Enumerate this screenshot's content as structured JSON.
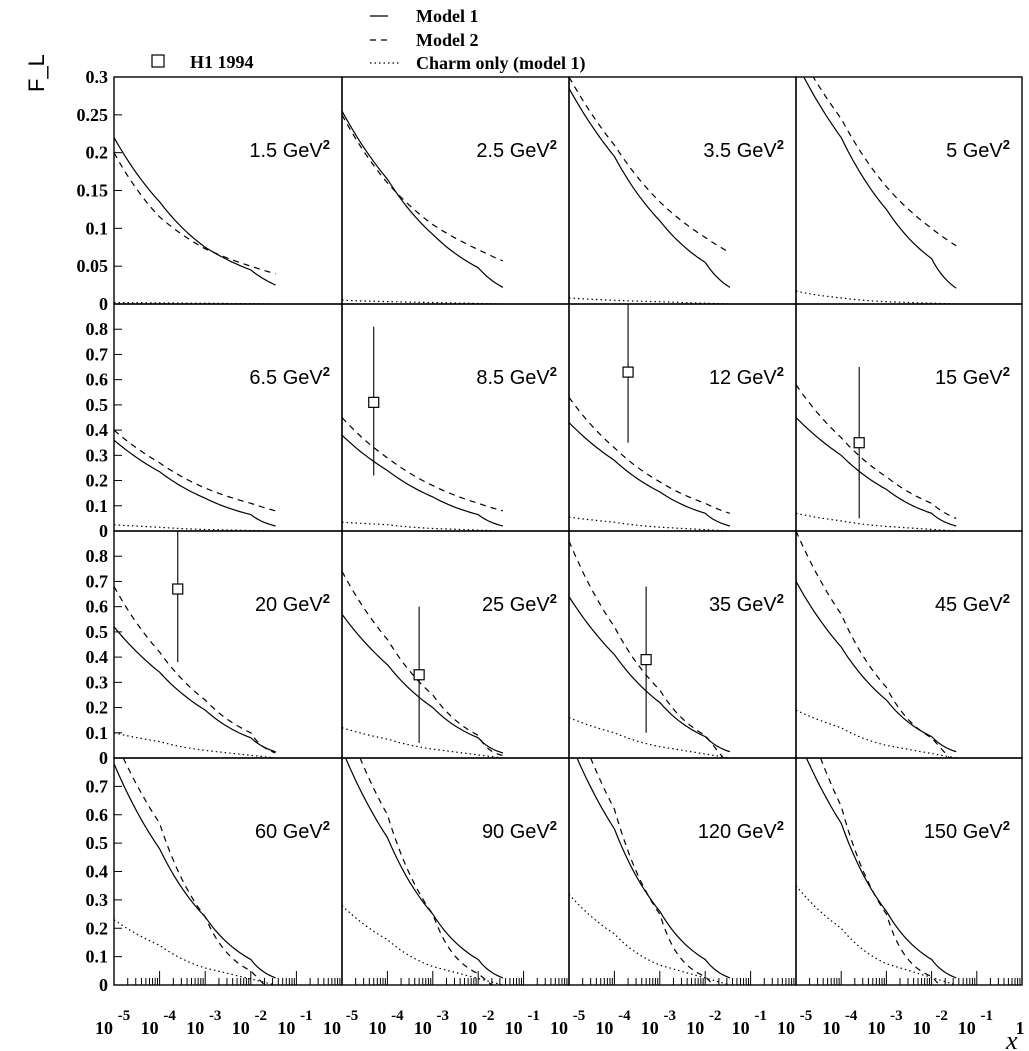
{
  "chart_data": {
    "type": "line",
    "x_scale": "log",
    "xlabel": "x",
    "ylabel": "F_L",
    "xlim": [
      1e-05,
      1
    ],
    "x_tick_labels": [
      "10",
      "-5",
      "10",
      "-4",
      "10",
      "-3",
      "10",
      "-2",
      "10",
      "-1",
      "1"
    ],
    "legend": {
      "lines": [
        {
          "label": "Model 1",
          "style": "solid"
        },
        {
          "label": "Model 2",
          "style": "dashed"
        },
        {
          "label": "Charm only (model 1)",
          "style": "dotted"
        }
      ],
      "marker": {
        "label": "H1 1994",
        "symbol": "open-square"
      }
    },
    "rows": [
      {
        "ylim": [
          0,
          0.3
        ],
        "y_tick_labels": [
          "0",
          "0.05",
          "0.1",
          "0.15",
          "0.2",
          "0.25",
          "0.3"
        ]
      },
      {
        "ylim": [
          0,
          0.9
        ],
        "y_tick_labels": [
          "0",
          "0.1",
          "0.2",
          "0.3",
          "0.4",
          "0.5",
          "0.6",
          "0.7",
          "0.8"
        ]
      },
      {
        "ylim": [
          0,
          0.9
        ],
        "y_tick_labels": [
          "0",
          "0.1",
          "0.2",
          "0.3",
          "0.4",
          "0.5",
          "0.6",
          "0.7",
          "0.8"
        ]
      },
      {
        "ylim": [
          0,
          0.8
        ],
        "y_tick_labels": [
          "0",
          "0.1",
          "0.2",
          "0.3",
          "0.4",
          "0.5",
          "0.6",
          "0.7"
        ]
      }
    ],
    "panels": [
      {
        "q2": "1.5",
        "model1": [
          [
            1e-05,
            0.22
          ],
          [
            0.0001,
            0.135
          ],
          [
            0.001,
            0.075
          ],
          [
            0.01,
            0.045
          ],
          [
            0.035,
            0.025
          ]
        ],
        "model2": [
          [
            1e-05,
            0.2
          ],
          [
            0.0001,
            0.115
          ],
          [
            0.001,
            0.073
          ],
          [
            0.01,
            0.05
          ],
          [
            0.035,
            0.04
          ]
        ],
        "charm": [
          [
            1e-05,
            0.002
          ],
          [
            0.001,
            0.001
          ],
          [
            0.035,
            0.0
          ]
        ],
        "data": []
      },
      {
        "q2": "2.5",
        "model1": [
          [
            1e-05,
            0.255
          ],
          [
            0.0001,
            0.165
          ],
          [
            0.001,
            0.092
          ],
          [
            0.01,
            0.048
          ],
          [
            0.035,
            0.022
          ]
        ],
        "model2": [
          [
            1e-05,
            0.25
          ],
          [
            0.0001,
            0.16
          ],
          [
            0.001,
            0.105
          ],
          [
            0.01,
            0.072
          ],
          [
            0.035,
            0.057
          ]
        ],
        "charm": [
          [
            1e-05,
            0.005
          ],
          [
            0.001,
            0.002
          ],
          [
            0.035,
            0.0
          ]
        ],
        "data": []
      },
      {
        "q2": "3.5",
        "model1": [
          [
            1e-05,
            0.285
          ],
          [
            0.0001,
            0.195
          ],
          [
            0.001,
            0.11
          ],
          [
            0.01,
            0.055
          ],
          [
            0.035,
            0.022
          ]
        ],
        "model2": [
          [
            1e-05,
            0.3
          ],
          [
            0.0001,
            0.21
          ],
          [
            0.001,
            0.135
          ],
          [
            0.01,
            0.088
          ],
          [
            0.035,
            0.068
          ]
        ],
        "charm": [
          [
            1e-05,
            0.008
          ],
          [
            0.001,
            0.003
          ],
          [
            0.035,
            0.0
          ]
        ],
        "data": []
      },
      {
        "q2": "5",
        "model1": [
          [
            1e-05,
            0.32
          ],
          [
            0.0001,
            0.22
          ],
          [
            0.001,
            0.125
          ],
          [
            0.01,
            0.06
          ],
          [
            0.035,
            0.021
          ]
        ],
        "model2": [
          [
            1e-05,
            0.34
          ],
          [
            0.0001,
            0.245
          ],
          [
            0.001,
            0.155
          ],
          [
            0.01,
            0.1
          ],
          [
            0.035,
            0.077
          ]
        ],
        "charm": [
          [
            1e-05,
            0.017
          ],
          [
            0.0001,
            0.008
          ],
          [
            0.001,
            0.003
          ],
          [
            0.035,
            0.0
          ]
        ],
        "data": []
      },
      {
        "q2": "6.5",
        "model1": [
          [
            1e-05,
            0.36
          ],
          [
            0.0001,
            0.235
          ],
          [
            0.001,
            0.13
          ],
          [
            0.01,
            0.065
          ],
          [
            0.035,
            0.02
          ]
        ],
        "model2": [
          [
            1e-05,
            0.4
          ],
          [
            0.0001,
            0.27
          ],
          [
            0.001,
            0.17
          ],
          [
            0.01,
            0.11
          ],
          [
            0.035,
            0.08
          ]
        ],
        "charm": [
          [
            1e-05,
            0.025
          ],
          [
            0.0001,
            0.015
          ],
          [
            0.001,
            0.006
          ],
          [
            0.035,
            0.0
          ]
        ],
        "data": []
      },
      {
        "q2": "8.5",
        "model1": [
          [
            1e-05,
            0.38
          ],
          [
            0.0001,
            0.24
          ],
          [
            0.001,
            0.135
          ],
          [
            0.01,
            0.065
          ],
          [
            0.035,
            0.02
          ]
        ],
        "model2": [
          [
            1e-05,
            0.45
          ],
          [
            0.0001,
            0.29
          ],
          [
            0.001,
            0.18
          ],
          [
            0.01,
            0.11
          ],
          [
            0.035,
            0.08
          ]
        ],
        "charm": [
          [
            1e-05,
            0.035
          ],
          [
            0.0001,
            0.025
          ],
          [
            0.001,
            0.01
          ],
          [
            0.035,
            0.0
          ]
        ],
        "data": [
          {
            "x": 5e-05,
            "y": 0.51,
            "ylow": 0.22,
            "yhigh": 0.81
          }
        ]
      },
      {
        "q2": "12",
        "model1": [
          [
            1e-05,
            0.43
          ],
          [
            0.0001,
            0.28
          ],
          [
            0.001,
            0.155
          ],
          [
            0.01,
            0.07
          ],
          [
            0.035,
            0.02
          ]
        ],
        "model2": [
          [
            1e-05,
            0.53
          ],
          [
            0.0001,
            0.33
          ],
          [
            0.001,
            0.195
          ],
          [
            0.01,
            0.11
          ],
          [
            0.035,
            0.07
          ]
        ],
        "charm": [
          [
            1e-05,
            0.055
          ],
          [
            0.0001,
            0.035
          ],
          [
            0.001,
            0.015
          ],
          [
            0.035,
            0.0
          ]
        ],
        "data": [
          {
            "x": 0.0002,
            "y": 0.63,
            "ylow": 0.35,
            "yhigh": 0.9
          }
        ]
      },
      {
        "q2": "15",
        "model1": [
          [
            1e-05,
            0.45
          ],
          [
            0.0001,
            0.3
          ],
          [
            0.001,
            0.165
          ],
          [
            0.01,
            0.07
          ],
          [
            0.035,
            0.02
          ]
        ],
        "model2": [
          [
            1e-05,
            0.58
          ],
          [
            0.0001,
            0.37
          ],
          [
            0.001,
            0.215
          ],
          [
            0.01,
            0.11
          ],
          [
            0.035,
            0.05
          ]
        ],
        "charm": [
          [
            1e-05,
            0.07
          ],
          [
            0.0001,
            0.04
          ],
          [
            0.001,
            0.018
          ],
          [
            0.035,
            0.0
          ]
        ],
        "data": [
          {
            "x": 0.00025,
            "y": 0.35,
            "ylow": 0.05,
            "yhigh": 0.65
          }
        ]
      },
      {
        "q2": "20",
        "model1": [
          [
            1e-05,
            0.52
          ],
          [
            0.0001,
            0.34
          ],
          [
            0.001,
            0.19
          ],
          [
            0.01,
            0.08
          ],
          [
            0.035,
            0.025
          ]
        ],
        "model2": [
          [
            1e-05,
            0.68
          ],
          [
            0.0001,
            0.42
          ],
          [
            0.001,
            0.23
          ],
          [
            0.01,
            0.1
          ],
          [
            0.035,
            0.02
          ]
        ],
        "charm": [
          [
            1e-05,
            0.1
          ],
          [
            0.0001,
            0.065
          ],
          [
            0.001,
            0.03
          ],
          [
            0.035,
            0.0
          ]
        ],
        "data": [
          {
            "x": 0.00025,
            "y": 0.67,
            "ylow": 0.38,
            "yhigh": 0.9
          }
        ]
      },
      {
        "q2": "25",
        "model1": [
          [
            1e-05,
            0.57
          ],
          [
            0.0001,
            0.37
          ],
          [
            0.001,
            0.2
          ],
          [
            0.01,
            0.08
          ],
          [
            0.035,
            0.02
          ]
        ],
        "model2": [
          [
            1e-05,
            0.74
          ],
          [
            0.0001,
            0.47
          ],
          [
            0.001,
            0.25
          ],
          [
            0.01,
            0.09
          ],
          [
            0.035,
            0.01
          ]
        ],
        "charm": [
          [
            1e-05,
            0.12
          ],
          [
            0.0001,
            0.075
          ],
          [
            0.001,
            0.035
          ],
          [
            0.035,
            0.0
          ]
        ],
        "data": [
          {
            "x": 0.0005,
            "y": 0.33,
            "ylow": 0.06,
            "yhigh": 0.6
          }
        ]
      },
      {
        "q2": "35",
        "model1": [
          [
            1e-05,
            0.64
          ],
          [
            0.0001,
            0.41
          ],
          [
            0.001,
            0.22
          ],
          [
            0.01,
            0.085
          ],
          [
            0.035,
            0.025
          ]
        ],
        "model2": [
          [
            1e-05,
            0.86
          ],
          [
            0.0001,
            0.52
          ],
          [
            0.001,
            0.27
          ],
          [
            0.01,
            0.09
          ],
          [
            0.025,
            0.0
          ]
        ],
        "charm": [
          [
            1e-05,
            0.16
          ],
          [
            0.0001,
            0.1
          ],
          [
            0.001,
            0.045
          ],
          [
            0.035,
            0.0
          ]
        ],
        "data": [
          {
            "x": 0.0005,
            "y": 0.39,
            "ylow": 0.1,
            "yhigh": 0.68
          }
        ]
      },
      {
        "q2": "45",
        "model1": [
          [
            1e-05,
            0.7
          ],
          [
            0.0001,
            0.44
          ],
          [
            0.001,
            0.23
          ],
          [
            0.01,
            0.085
          ],
          [
            0.035,
            0.025
          ]
        ],
        "model2": [
          [
            1e-05,
            0.9
          ],
          [
            0.0001,
            0.57
          ],
          [
            0.001,
            0.28
          ],
          [
            0.01,
            0.08
          ],
          [
            0.025,
            0.0
          ]
        ],
        "charm": [
          [
            1e-05,
            0.19
          ],
          [
            0.0001,
            0.12
          ],
          [
            0.001,
            0.05
          ],
          [
            0.035,
            0.0
          ]
        ],
        "data": []
      },
      {
        "q2": "60",
        "model1": [
          [
            1e-05,
            0.78
          ],
          [
            0.0001,
            0.48
          ],
          [
            0.001,
            0.24
          ],
          [
            0.01,
            0.09
          ],
          [
            0.035,
            0.025
          ]
        ],
        "model2": [
          [
            1.6e-05,
            0.8
          ],
          [
            0.0001,
            0.57
          ],
          [
            0.001,
            0.24
          ],
          [
            0.01,
            0.05
          ],
          [
            0.02,
            0.0
          ]
        ],
        "charm": [
          [
            1e-05,
            0.23
          ],
          [
            0.0001,
            0.14
          ],
          [
            0.001,
            0.06
          ],
          [
            0.035,
            0.0
          ]
        ],
        "data": []
      },
      {
        "q2": "90",
        "model1": [
          [
            1.2e-05,
            0.8
          ],
          [
            0.0001,
            0.52
          ],
          [
            0.001,
            0.25
          ],
          [
            0.01,
            0.09
          ],
          [
            0.035,
            0.025
          ]
        ],
        "model2": [
          [
            2.5e-05,
            0.8
          ],
          [
            0.0001,
            0.6
          ],
          [
            0.001,
            0.25
          ],
          [
            0.01,
            0.04
          ],
          [
            0.02,
            0.0
          ]
        ],
        "charm": [
          [
            1e-05,
            0.28
          ],
          [
            0.0001,
            0.16
          ],
          [
            0.001,
            0.065
          ],
          [
            0.035,
            0.0
          ]
        ],
        "data": []
      },
      {
        "q2": "120",
        "model1": [
          [
            1.5e-05,
            0.8
          ],
          [
            0.0001,
            0.55
          ],
          [
            0.001,
            0.26
          ],
          [
            0.01,
            0.09
          ],
          [
            0.035,
            0.025
          ]
        ],
        "model2": [
          [
            3e-05,
            0.8
          ],
          [
            0.0001,
            0.62
          ],
          [
            0.001,
            0.25
          ],
          [
            0.01,
            0.03
          ],
          [
            0.015,
            0.0
          ]
        ],
        "charm": [
          [
            1e-05,
            0.32
          ],
          [
            0.0001,
            0.18
          ],
          [
            0.001,
            0.07
          ],
          [
            0.035,
            0.0
          ]
        ],
        "data": []
      },
      {
        "q2": "150",
        "model1": [
          [
            1.7e-05,
            0.8
          ],
          [
            0.0001,
            0.57
          ],
          [
            0.001,
            0.26
          ],
          [
            0.01,
            0.09
          ],
          [
            0.035,
            0.025
          ]
        ],
        "model2": [
          [
            3.5e-05,
            0.8
          ],
          [
            0.0001,
            0.63
          ],
          [
            0.001,
            0.25
          ],
          [
            0.01,
            0.03
          ],
          [
            0.015,
            0.0
          ]
        ],
        "charm": [
          [
            1e-05,
            0.35
          ],
          [
            0.0001,
            0.2
          ],
          [
            0.001,
            0.075
          ],
          [
            0.035,
            0.0
          ]
        ],
        "data": []
      }
    ]
  }
}
